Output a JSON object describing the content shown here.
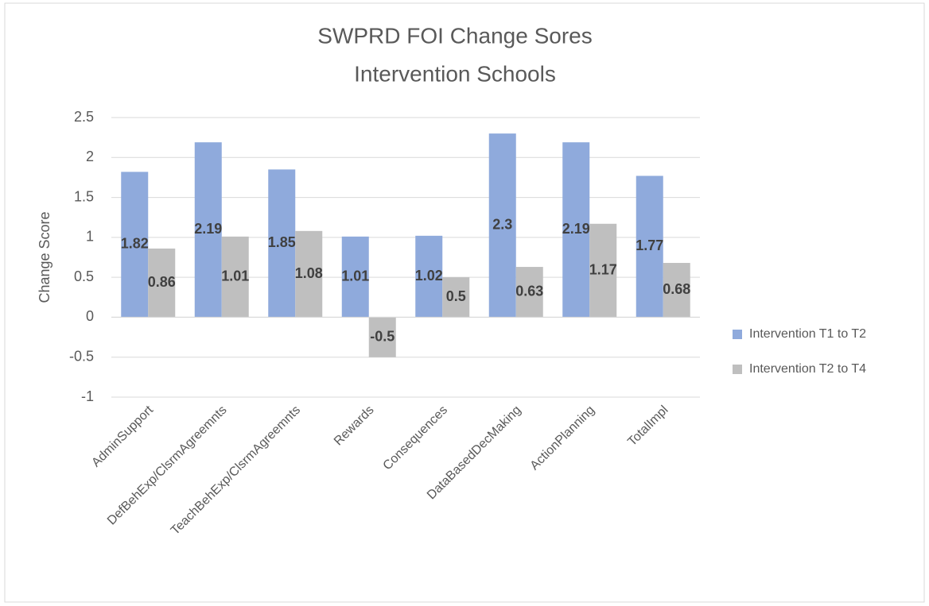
{
  "chart_data": {
    "type": "bar",
    "title": [
      "SWPRD FOI Change Sores",
      "Intervention Schools"
    ],
    "y_axis_label": "Change Score",
    "categories": [
      "AdminSupport",
      "DefBehExp/ClsrmAgreemnts",
      "TeachBehExp/ClsrmAgreemnts",
      "Rewards",
      "Consequences",
      "DataBasedDecMaking",
      "ActionPlanning",
      "TotalImpl"
    ],
    "series": [
      {
        "name": "Intervention T1 to T2",
        "color": "#8faadc",
        "values": [
          1.82,
          2.19,
          1.85,
          1.01,
          1.02,
          2.3,
          2.19,
          1.77
        ]
      },
      {
        "name": "Intervention T2 to T4",
        "color": "#bfbfbf",
        "values": [
          0.86,
          1.01,
          1.08,
          -0.5,
          0.5,
          0.63,
          1.17,
          0.68
        ]
      }
    ],
    "ylim": [
      -1,
      2.5
    ],
    "yticks": [
      -1,
      -0.5,
      0,
      0.5,
      1,
      1.5,
      2,
      2.5
    ],
    "grid": true,
    "legend": "right",
    "data_labels": true
  }
}
